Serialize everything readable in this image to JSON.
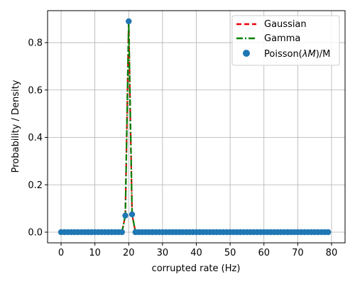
{
  "chart_data": {
    "type": "line",
    "xlabel": "corrupted rate (Hz)",
    "ylabel": "Probability / Density",
    "xlim": [
      -4,
      84
    ],
    "ylim": [
      -0.045,
      0.935
    ],
    "xticks": [
      0,
      10,
      20,
      30,
      40,
      50,
      60,
      70,
      80
    ],
    "yticks": [
      0.0,
      0.2,
      0.4,
      0.6,
      0.8
    ],
    "ytick_labels": [
      "0.0",
      "0.2",
      "0.4",
      "0.6",
      "0.8"
    ],
    "grid": true,
    "legend_position": "top-right",
    "x_range": [
      0,
      79
    ],
    "nonzero": {
      "19": 0.07,
      "20": 0.89,
      "21": 0.075
    },
    "series": [
      {
        "name": "Gaussian",
        "style": "dashed",
        "color": "#e8000b"
      },
      {
        "name": "Gamma",
        "style": "dashdot",
        "color": "#008000"
      },
      {
        "name": "Poisson($\\lambda M$)/M",
        "style": "markers",
        "color": "#1f77b4"
      }
    ]
  }
}
